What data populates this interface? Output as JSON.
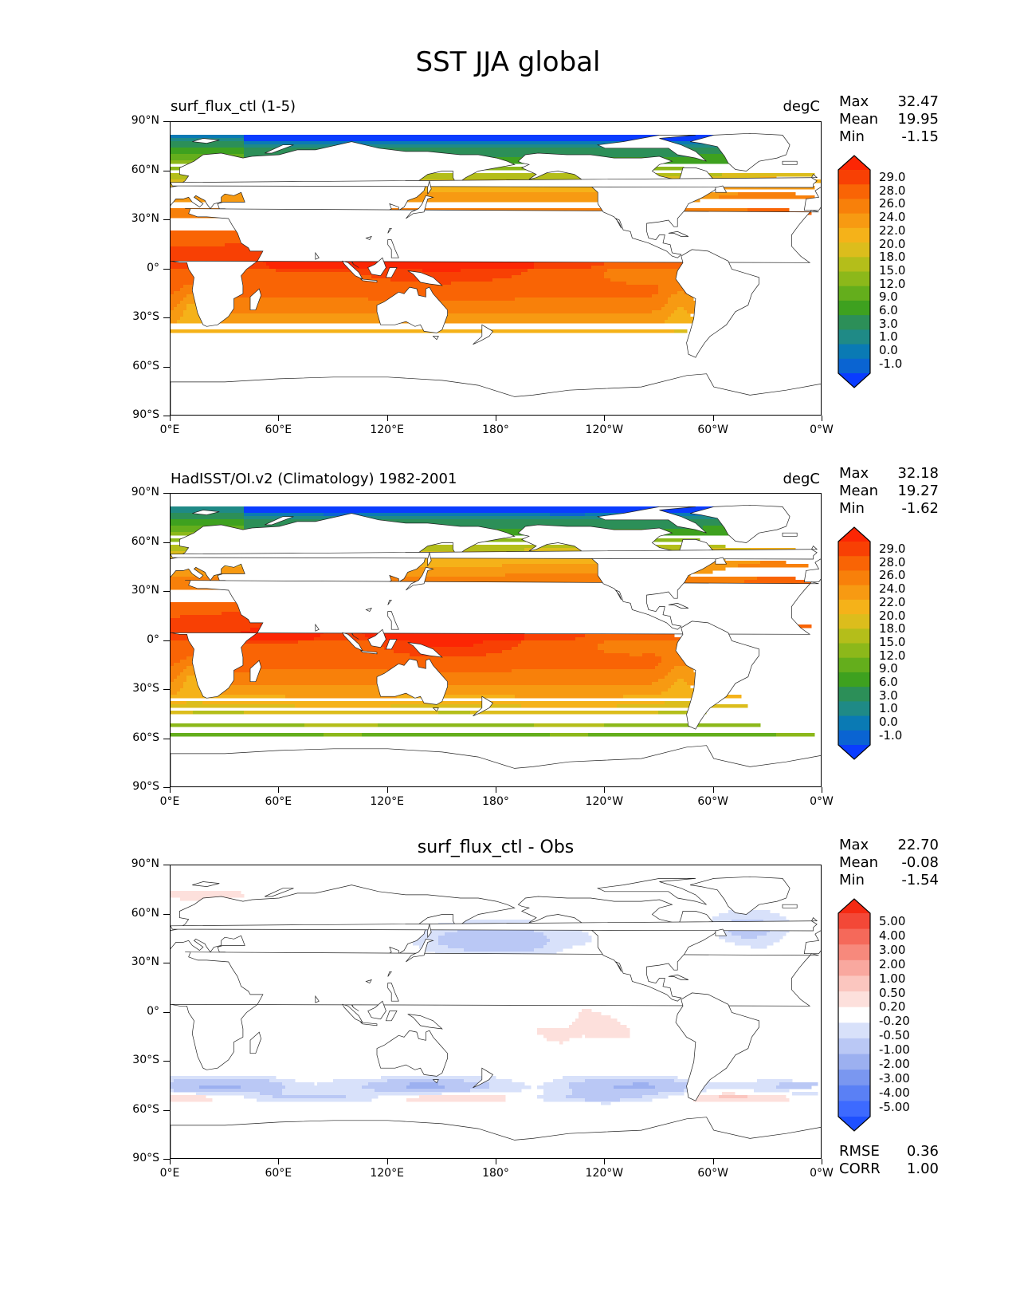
{
  "title": "SST JJA global",
  "lat_labels": [
    "90°N",
    "60°N",
    "30°N",
    "0°",
    "30°S",
    "60°S",
    "90°S"
  ],
  "lon_labels": [
    "0°E",
    "60°E",
    "120°E",
    "180°",
    "120°W",
    "60°W",
    "0°W"
  ],
  "stat_names": {
    "max": "Max",
    "mean": "Mean",
    "min": "Min",
    "rmse": "RMSE",
    "corr": "CORR"
  },
  "panels": [
    {
      "id": "model",
      "title": "surf_flux_ctl (1-5)",
      "units": "degC",
      "max": "32.47",
      "mean": "19.95",
      "min": "-1.15",
      "colorbar_labels": [
        "29.0",
        "28.0",
        "26.0",
        "24.0",
        "22.0",
        "20.0",
        "18.0",
        "15.0",
        "12.0",
        "9.0",
        "6.0",
        "3.0",
        "1.0",
        "0.0",
        "-1.0"
      ]
    },
    {
      "id": "obs",
      "title": "HadISST/OI.v2 (Climatology) 1982-2001",
      "units": "degC",
      "max": "32.18",
      "mean": "19.27",
      "min": "-1.62",
      "colorbar_labels": [
        "29.0",
        "28.0",
        "26.0",
        "24.0",
        "22.0",
        "20.0",
        "18.0",
        "15.0",
        "12.0",
        "9.0",
        "6.0",
        "3.0",
        "1.0",
        "0.0",
        "-1.0"
      ]
    },
    {
      "id": "diff",
      "title": "surf_flux_ctl - Obs",
      "max": "22.70",
      "mean": "-0.08",
      "min": "-1.54",
      "rmse": "0.36",
      "corr": "1.00",
      "colorbar_labels": [
        "5.00",
        "4.00",
        "3.00",
        "2.00",
        "1.00",
        "0.50",
        "0.20",
        "-0.20",
        "-0.50",
        "-1.00",
        "-2.00",
        "-3.00",
        "-4.00",
        "-5.00"
      ]
    }
  ],
  "colors": {
    "sst_scale_low_to_high": [
      "#0a3cff",
      "#0a64d2",
      "#0a7ab4",
      "#1f8a86",
      "#2c8f58",
      "#3ea11f",
      "#64ae1c",
      "#8cb81a",
      "#b4be1a",
      "#dcbd1c",
      "#f5b219",
      "#f79a12",
      "#f8800a",
      "#f96405",
      "#f84004",
      "#fc2604"
    ],
    "diff_scale_low_to_high": [
      "#1e50ff",
      "#3d6aff",
      "#5a80f5",
      "#7a97f0",
      "#9cb0f0",
      "#bac8f5",
      "#d8e1fa",
      "#ffffff",
      "#fde0dc",
      "#fbc6bf",
      "#f9a89f",
      "#f7897c",
      "#f5695a",
      "#f34837",
      "#f52a12"
    ]
  }
}
